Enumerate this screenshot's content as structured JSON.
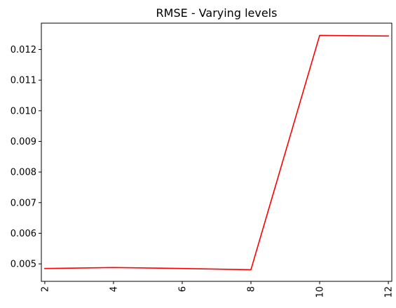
{
  "chart_data": {
    "type": "line",
    "title": "RMSE - Varying levels",
    "xlabel": "",
    "ylabel": "",
    "x": [
      2,
      4,
      6,
      8,
      10,
      12
    ],
    "series": [
      {
        "values": [
          0.00485,
          0.00488,
          0.00485,
          0.00481,
          0.01246,
          0.01244
        ],
        "color": "#ff0000"
      }
    ],
    "xlim": [
      1.9,
      12.1
    ],
    "ylim": [
      0.00443,
      0.01286
    ],
    "xticks": [
      2,
      4,
      6,
      8,
      10,
      12
    ],
    "yticks": [
      0.005,
      0.006,
      0.007,
      0.008,
      0.009,
      0.01,
      0.011,
      0.012
    ],
    "ytick_labels": [
      "0.005",
      "0.006",
      "0.007",
      "0.008",
      "0.009",
      "0.010",
      "0.011",
      "0.012"
    ],
    "xtick_rotation": "vertical",
    "grid": false,
    "legend": "none"
  }
}
